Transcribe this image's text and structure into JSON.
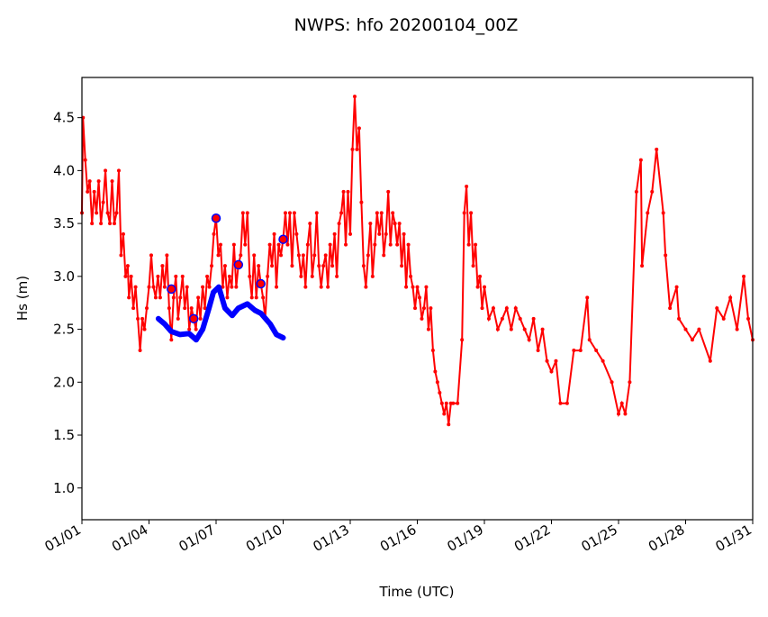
{
  "chart_data": {
    "type": "line",
    "title": "NWPS: hfo 20200104_00Z",
    "xlabel": "Time (UTC)",
    "ylabel": "Hs (m)",
    "x_units": "days since 01/01",
    "xlim": [
      0,
      30
    ],
    "ylim": [
      0.7,
      4.88
    ],
    "xticks": [
      0,
      3,
      6,
      9,
      12,
      15,
      18,
      21,
      24,
      27,
      30
    ],
    "xtick_labels": [
      "01/01",
      "01/04",
      "01/07",
      "01/10",
      "01/13",
      "01/16",
      "01/19",
      "01/22",
      "01/25",
      "01/28",
      "01/31"
    ],
    "yticks": [
      1.0,
      1.5,
      2.0,
      2.5,
      3.0,
      3.5,
      4.0,
      4.5
    ],
    "ytick_labels": [
      "1.0",
      "1.5",
      "2.0",
      "2.5",
      "3.0",
      "3.5",
      "4.0",
      "4.5"
    ],
    "grid": false,
    "series": [
      {
        "name": "observed",
        "color": "#ff0000",
        "style": "line-dot",
        "x": [
          0,
          0.05,
          0.15,
          0.25,
          0.35,
          0.45,
          0.55,
          0.65,
          0.75,
          0.85,
          0.95,
          1.05,
          1.15,
          1.25,
          1.35,
          1.45,
          1.55,
          1.65,
          1.75,
          1.85,
          1.95,
          2.05,
          2.1,
          2.2,
          2.3,
          2.4,
          2.5,
          2.6,
          2.7,
          2.8,
          2.9,
          3.0,
          3.1,
          3.2,
          3.3,
          3.4,
          3.5,
          3.6,
          3.7,
          3.8,
          3.9,
          4.0,
          4.1,
          4.2,
          4.3,
          4.4,
          4.5,
          4.6,
          4.7,
          4.8,
          4.9,
          5.0,
          5.1,
          5.2,
          5.3,
          5.4,
          5.5,
          5.6,
          5.7,
          5.8,
          5.9,
          6.0,
          6.1,
          6.2,
          6.3,
          6.4,
          6.5,
          6.6,
          6.7,
          6.8,
          6.9,
          7.0,
          7.1,
          7.2,
          7.3,
          7.4,
          7.5,
          7.6,
          7.7,
          7.8,
          7.9,
          8.0,
          8.1,
          8.2,
          8.3,
          8.4,
          8.5,
          8.6,
          8.7,
          8.8,
          8.9,
          9.0,
          9.1,
          9.2,
          9.3,
          9.4,
          9.5,
          9.6,
          9.7,
          9.8,
          9.9,
          10.0,
          10.1,
          10.2,
          10.3,
          10.4,
          10.5,
          10.6,
          10.7,
          10.8,
          10.9,
          11.0,
          11.1,
          11.2,
          11.3,
          11.4,
          11.5,
          11.6,
          11.7,
          11.8,
          11.9,
          12.0,
          12.1,
          12.2,
          12.3,
          12.4,
          12.5,
          12.6,
          12.7,
          12.8,
          12.9,
          13.0,
          13.1,
          13.2,
          13.3,
          13.4,
          13.5,
          13.6,
          13.7,
          13.8,
          13.9,
          14.0,
          14.1,
          14.2,
          14.3,
          14.4,
          14.5,
          14.6,
          14.7,
          14.8,
          14.9,
          15.0,
          15.1,
          15.2,
          15.3,
          15.4,
          15.5,
          15.6,
          15.7,
          15.8,
          15.9,
          16.0,
          16.1,
          16.2,
          16.3,
          16.4,
          16.5,
          16.6,
          16.8,
          17.0,
          17.1,
          17.2,
          17.3,
          17.4,
          17.5,
          17.6,
          17.7,
          17.8,
          17.9,
          18.0,
          18.2,
          18.4,
          18.6,
          18.8,
          19.0,
          19.2,
          19.4,
          19.6,
          19.8,
          20.0,
          20.2,
          20.4,
          20.6,
          20.8,
          21.0,
          21.2,
          21.4,
          21.7,
          22.0,
          22.3,
          22.6,
          22.7,
          23.0,
          23.3,
          23.7,
          24.0,
          24.15,
          24.3,
          24.5,
          24.8,
          25.0,
          25.05,
          25.3,
          25.5,
          25.7,
          26.0,
          26.1,
          26.3,
          26.6,
          26.7,
          27.0,
          27.3,
          27.6,
          28.1,
          28.4,
          28.7,
          29.0,
          29.3,
          29.6,
          29.8,
          30.0
        ],
        "values": [
          3.6,
          4.5,
          4.1,
          3.8,
          3.9,
          3.5,
          3.8,
          3.6,
          3.9,
          3.5,
          3.7,
          4.0,
          3.6,
          3.5,
          3.9,
          3.5,
          3.6,
          4.0,
          3.2,
          3.4,
          3.0,
          3.1,
          2.8,
          3.0,
          2.7,
          2.9,
          2.6,
          2.3,
          2.6,
          2.5,
          2.7,
          2.9,
          3.2,
          2.9,
          2.8,
          3.0,
          2.8,
          3.1,
          2.9,
          3.2,
          2.7,
          2.4,
          2.8,
          3.0,
          2.6,
          2.8,
          3.0,
          2.7,
          2.9,
          2.5,
          2.7,
          2.6,
          2.5,
          2.8,
          2.6,
          2.9,
          2.7,
          3.0,
          2.9,
          3.1,
          3.4,
          3.55,
          3.2,
          3.3,
          2.9,
          3.1,
          2.8,
          3.0,
          2.9,
          3.3,
          2.9,
          3.11,
          3.2,
          3.6,
          3.3,
          3.6,
          3.0,
          2.8,
          3.2,
          2.8,
          3.1,
          2.93,
          2.8,
          2.6,
          3.0,
          3.3,
          3.1,
          3.4,
          2.9,
          3.3,
          3.2,
          3.35,
          3.6,
          3.3,
          3.6,
          3.1,
          3.6,
          3.4,
          3.2,
          3.0,
          3.2,
          2.9,
          3.3,
          3.5,
          3.0,
          3.2,
          3.6,
          3.1,
          2.9,
          3.1,
          3.2,
          2.9,
          3.3,
          3.1,
          3.4,
          3.0,
          3.5,
          3.6,
          3.8,
          3.3,
          3.8,
          3.4,
          4.2,
          4.7,
          4.2,
          4.4,
          3.7,
          3.1,
          2.9,
          3.2,
          3.5,
          3.0,
          3.3,
          3.6,
          3.4,
          3.6,
          3.2,
          3.4,
          3.8,
          3.3,
          3.6,
          3.5,
          3.3,
          3.5,
          3.1,
          3.4,
          2.9,
          3.3,
          3.0,
          2.9,
          2.7,
          2.9,
          2.8,
          2.6,
          2.7,
          2.9,
          2.5,
          2.7,
          2.3,
          2.1,
          2.0,
          1.9,
          1.8,
          1.7,
          1.8,
          1.6,
          1.8,
          1.8,
          1.8,
          2.4,
          3.6,
          3.85,
          3.3,
          3.6,
          3.1,
          3.3,
          2.9,
          3.0,
          2.7,
          2.9,
          2.6,
          2.7,
          2.5,
          2.6,
          2.7,
          2.5,
          2.7,
          2.6,
          2.5,
          2.4,
          2.6,
          2.3,
          2.5,
          2.2,
          2.1,
          2.2,
          1.8,
          1.8,
          2.3,
          2.3,
          2.8,
          2.4,
          2.3,
          2.2,
          2.0,
          1.7,
          1.8,
          1.7,
          2.0,
          3.8,
          4.1,
          3.1,
          3.6,
          3.8,
          4.2,
          3.6,
          3.2,
          2.7,
          2.9,
          2.6,
          2.5,
          2.4,
          2.5,
          2.2,
          2.7,
          2.6,
          2.8,
          2.5,
          3.0,
          2.6,
          2.4
        ]
      },
      {
        "name": "model",
        "color": "#0000ff",
        "style": "thick-line",
        "x": [
          3.42,
          3.7,
          3.99,
          4.39,
          4.79,
          5.11,
          5.4,
          5.68,
          5.88,
          6.12,
          6.4,
          6.72,
          7.0,
          7.4,
          7.73,
          8.01,
          8.42,
          8.7,
          9.0
        ],
        "values": [
          2.6,
          2.55,
          2.48,
          2.45,
          2.46,
          2.4,
          2.5,
          2.7,
          2.85,
          2.9,
          2.7,
          2.63,
          2.7,
          2.74,
          2.68,
          2.65,
          2.55,
          2.45,
          2.42
        ]
      },
      {
        "name": "model-markers",
        "color": "#0000ff",
        "style": "open-circle",
        "x": [
          4,
          5,
          6,
          7,
          8,
          9
        ],
        "values": [
          2.88,
          2.6,
          3.55,
          3.11,
          2.93,
          3.35
        ]
      }
    ]
  }
}
